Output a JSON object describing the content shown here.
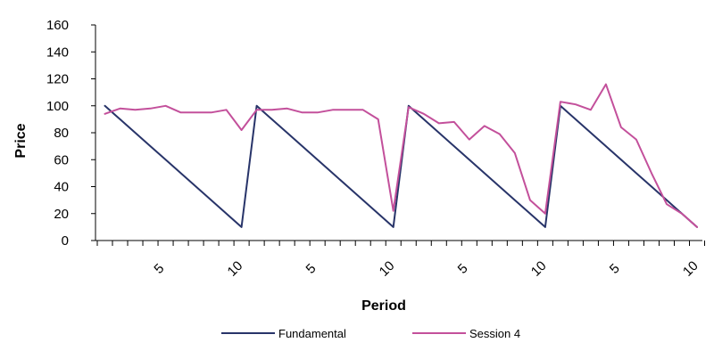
{
  "chart_data": {
    "type": "line",
    "title": "",
    "xlabel": "Period",
    "ylabel": "Price",
    "ylim": [
      0,
      160
    ],
    "yticks": [
      0,
      20,
      40,
      60,
      80,
      100,
      120,
      140,
      160
    ],
    "grid": false,
    "legend_position": "bottom",
    "x_tick_labels": [
      "5",
      "10",
      "5",
      "10",
      "5",
      "10",
      "5",
      "10"
    ],
    "x_tick_positions": [
      5,
      10,
      15,
      20,
      25,
      30,
      35,
      40
    ],
    "series": [
      {
        "name": "Fundamental",
        "color": "#283469",
        "values": [
          100,
          90,
          80,
          70,
          60,
          50,
          40,
          30,
          20,
          10,
          100,
          90,
          80,
          70,
          60,
          50,
          40,
          30,
          20,
          10,
          100,
          90,
          80,
          70,
          60,
          50,
          40,
          30,
          20,
          10,
          100,
          90,
          80,
          70,
          60,
          50,
          40,
          30,
          20,
          10
        ]
      },
      {
        "name": "Session 4",
        "color": "#c3509b",
        "values": [
          94,
          98,
          97,
          98,
          100,
          95,
          95,
          95,
          97,
          82,
          97,
          97,
          98,
          95,
          95,
          97,
          97,
          97,
          90,
          22,
          99,
          94,
          87,
          88,
          75,
          85,
          79,
          65,
          30,
          20,
          103,
          101,
          97,
          116,
          84,
          75,
          50,
          27,
          20,
          10
        ]
      }
    ]
  }
}
